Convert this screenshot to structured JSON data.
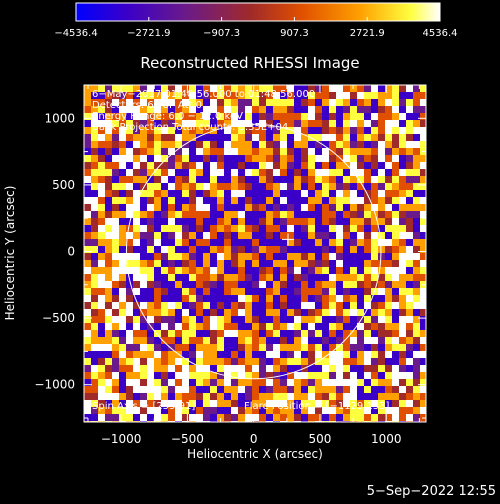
{
  "chart_data": {
    "type": "heatmap",
    "title": "Reconstructed RHESSI Image",
    "xlabel": "Heliocentric X (arcsec)",
    "ylabel": "Heliocentric Y (arcsec)",
    "xlim": [
      -1280,
      1300
    ],
    "ylim": [
      -1280,
      1250
    ],
    "xticks": [
      -1000,
      -500,
      0,
      500,
      1000
    ],
    "yticks": [
      -1000,
      -500,
      0,
      500,
      1000
    ],
    "x_tick_labels": [
      "−1000",
      "−500",
      "0",
      "500",
      "1000"
    ],
    "y_tick_labels": [
      "−1000",
      "−500",
      "0",
      "500",
      "1000"
    ],
    "colorbar": {
      "min": -4536.4,
      "max": 4536.4,
      "ticks": [
        -4536.4,
        -2721.9,
        -907.3,
        907.3,
        2721.9,
        4536.4
      ],
      "tick_labels": [
        "−4536.4",
        "−2721.9",
        "−907.3",
        "907.3",
        "2721.9",
        "4536.4"
      ],
      "colors": [
        "#0000ff",
        "#3a00c8",
        "#6a1a8a",
        "#a02a2a",
        "#e05000",
        "#ffa000",
        "#ffff40",
        "#ffffff"
      ]
    },
    "annotations": [
      "6−May−2017 01:40:56.000 to 01:48:56.000",
      "Detectors: 6F 8F  Att 0",
      "Energy Range: 6.0 − 12.0 keV",
      "Back Projection    Total counts: 3.35E+04"
    ],
    "spin_axis": "Spin Axis = [259,91]",
    "flare_position": "Flare Position = [−1129,153]",
    "solar_disk": {
      "center": [
        0,
        0
      ],
      "radius": 960
    },
    "spin_axis_marker": [
      259,
      91
    ],
    "grid": false
  },
  "timestamp": "5−Sep−2022 12:55",
  "colors": {
    "background": "#000000",
    "foreground": "#ffffff"
  }
}
